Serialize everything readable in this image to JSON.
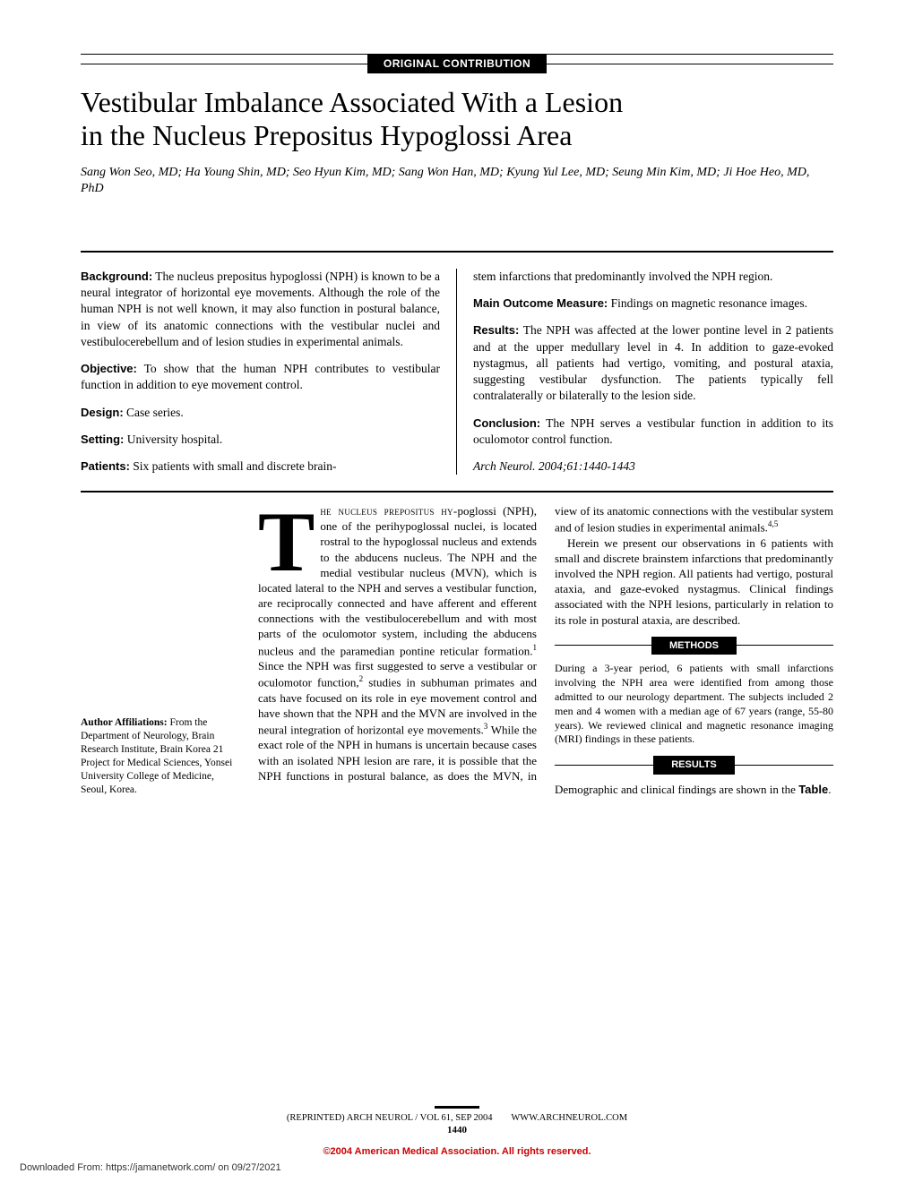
{
  "category": "ORIGINAL CONTRIBUTION",
  "title_line1": "Vestibular Imbalance Associated With a Lesion",
  "title_line2": "in the Nucleus Prepositus Hypoglossi Area",
  "authors": "Sang Won Seo, MD; Ha Young Shin, MD; Seo Hyun Kim, MD; Sang Won Han, MD; Kyung Yul Lee, MD; Seung Min Kim, MD; Ji Hoe Heo, MD, PhD",
  "abstract": {
    "background_label": "Background:",
    "background": " The nucleus prepositus hypoglossi (NPH) is known to be a neural integrator of horizontal eye movements. Although the role of the human NPH is not well known, it may also function in postural balance, in view of its anatomic connections with the vestibular nuclei and vestibulocerebellum and of lesion studies in experimental animals.",
    "objective_label": "Objective:",
    "objective": " To show that the human NPH contributes to vestibular function in addition to eye movement control.",
    "design_label": "Design:",
    "design": " Case series.",
    "setting_label": "Setting:",
    "setting": " University hospital.",
    "patients_label": "Patients:",
    "patients": " Six patients with small and discrete brain-",
    "patients_cont": "stem infarctions that predominantly involved the NPH region.",
    "outcome_label": "Main Outcome Measure:",
    "outcome": " Findings on magnetic resonance images.",
    "results_label": "Results:",
    "results": " The NPH was affected at the lower pontine level in 2 patients and at the upper medullary level in 4. In addition to gaze-evoked nystagmus, all patients had vertigo, vomiting, and postural ataxia, suggesting vestibular dysfunction. The patients typically fell contralaterally or bilaterally to the lesion side.",
    "conclusion_label": "Conclusion:",
    "conclusion": " The NPH serves a vestibular function in addition to its oculomotor control function.",
    "citation": "Arch Neurol. 2004;61:1440-1443"
  },
  "body": {
    "dropcap": "T",
    "first_caps": "he nucleus prepositus hy-",
    "para1": "poglossi (NPH), one of the perihypoglossal nuclei, is located rostral to the hypoglossal nucleus and extends to the abducens nucleus. The NPH and the medial vestibular nucleus (MVN), which is located lateral to the NPH and serves a vestibular function, are reciprocally connected and have afferent and efferent connections with the vestibulocerebellum and with most parts of the oculomotor system, including the abducens nucleus and the paramedian pontine reticular formation.",
    "sup1": "1",
    "para1b": " Since the NPH was first suggested to serve a vestibular or oculomotor function,",
    "sup2": "2",
    "para1c": " studies in subhuman primates and cats have focused on its role in eye movement control and have shown that the NPH and the MVN are involved in the neural integration of horizontal eye movements.",
    "sup3": "3",
    "para1d": " While the exact role of the NPH in humans is uncertain because cases with an isolated NPH lesion are rare, it is possible that the NPH functions in postural balance, as does the MVN, in view of its anatomic connections with",
    "para2a": "the vestibular system and of lesion studies in experimental animals.",
    "sup45": "4,5",
    "para2b": "Herein we present our observations in 6 patients with small and discrete brainstem infarctions that predominantly involved the NPH region. All patients had vertigo, postural ataxia, and gaze-evoked nystagmus. Clinical findings associated with the NPH lesions, particularly in relation to its role in postural ataxia, are described.",
    "methods_head": "METHODS",
    "methods": "During a 3-year period, 6 patients with small infarctions involving the NPH area were identified from among those admitted to our neurology department. The subjects included 2 men and 4 women with a median age of 67 years (range, 55-80 years). We reviewed clinical and magnetic resonance imaging (MRI) findings in these patients.",
    "results_head": "RESULTS",
    "results": "Demographic and clinical findings are shown in the ",
    "table_word": "Table",
    "results_end": "."
  },
  "affiliations": {
    "label": "Author Affiliations: ",
    "text": "From the Department of Neurology, Brain Research Institute, Brain Korea 21 Project for Medical Sciences, Yonsei University College of Medicine, Seoul, Korea."
  },
  "footer": {
    "left": "(REPRINTED) ARCH NEUROL / VOL 61, SEP 2004",
    "right": "WWW.ARCHNEUROL.COM",
    "page": "1440"
  },
  "copyright": "©2004 American Medical Association. All rights reserved.",
  "download": "Downloaded From: https://jamanetwork.com/ on 09/27/2021"
}
